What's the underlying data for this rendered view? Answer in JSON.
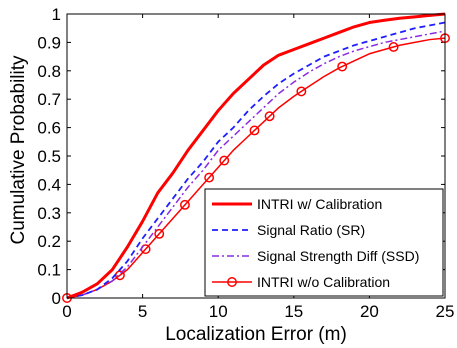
{
  "chart_data": {
    "type": "line",
    "title": "",
    "xlabel": "Localization Error (m)",
    "ylabel": "Cumulative Probability",
    "xlim": [
      0,
      25
    ],
    "ylim": [
      0,
      1
    ],
    "xticks": [
      "0",
      "5",
      "10",
      "15",
      "20",
      "25"
    ],
    "yticks": [
      "0",
      "0.1",
      "0.2",
      "0.3",
      "0.4",
      "0.5",
      "0.6",
      "0.7",
      "0.8",
      "0.9",
      "1"
    ],
    "grid": false,
    "legend_position": "bottom-right",
    "series": [
      {
        "name": "INTRI w/ Calibration",
        "color": "#ff0000",
        "style": "solid-thick",
        "x": [
          0,
          1,
          2,
          3,
          4,
          5,
          6,
          7,
          8,
          9,
          10,
          11,
          12,
          13,
          14,
          15,
          16,
          17,
          18,
          19,
          20,
          21,
          22,
          23,
          24,
          25
        ],
        "y": [
          0,
          0.02,
          0.05,
          0.1,
          0.18,
          0.27,
          0.37,
          0.44,
          0.52,
          0.59,
          0.66,
          0.72,
          0.77,
          0.82,
          0.855,
          0.875,
          0.895,
          0.915,
          0.935,
          0.955,
          0.97,
          0.978,
          0.985,
          0.99,
          0.995,
          1.0
        ]
      },
      {
        "name": "Signal Ratio (SR)",
        "color": "#1f1fff",
        "style": "dashed",
        "x": [
          0,
          1,
          2,
          3,
          4,
          5,
          6,
          7,
          8,
          9,
          10,
          11,
          12,
          13,
          14,
          15,
          16,
          17,
          18,
          19,
          20,
          21,
          22,
          23,
          24,
          25
        ],
        "y": [
          0,
          0.01,
          0.03,
          0.07,
          0.13,
          0.21,
          0.28,
          0.35,
          0.42,
          0.48,
          0.55,
          0.6,
          0.66,
          0.71,
          0.755,
          0.79,
          0.82,
          0.85,
          0.87,
          0.89,
          0.905,
          0.92,
          0.935,
          0.95,
          0.96,
          0.97
        ]
      },
      {
        "name": "Signal Strength Diff (SSD)",
        "color": "#8a2be2",
        "style": "dash-dot",
        "x": [
          0,
          1,
          2,
          3,
          4,
          5,
          6,
          7,
          8,
          9,
          10,
          11,
          12,
          13,
          14,
          15,
          16,
          17,
          18,
          19,
          20,
          21,
          22,
          23,
          24,
          25
        ],
        "y": [
          0,
          0.01,
          0.03,
          0.06,
          0.11,
          0.18,
          0.25,
          0.32,
          0.39,
          0.45,
          0.52,
          0.57,
          0.62,
          0.67,
          0.72,
          0.76,
          0.795,
          0.825,
          0.85,
          0.87,
          0.885,
          0.9,
          0.91,
          0.92,
          0.93,
          0.94
        ]
      },
      {
        "name": "INTRI w/o Calibration",
        "color": "#ff0000",
        "style": "solid-circle",
        "x": [
          0,
          1,
          2,
          3,
          4,
          5,
          6,
          7,
          8,
          9,
          10,
          11,
          12,
          13,
          14,
          15,
          16,
          17,
          18,
          19,
          20,
          21,
          22,
          23,
          24,
          25
        ],
        "y": [
          0,
          0.01,
          0.03,
          0.06,
          0.1,
          0.16,
          0.22,
          0.28,
          0.34,
          0.4,
          0.46,
          0.52,
          0.57,
          0.62,
          0.67,
          0.71,
          0.745,
          0.78,
          0.81,
          0.835,
          0.86,
          0.875,
          0.89,
          0.9,
          0.91,
          0.915
        ]
      }
    ],
    "marker_x": [
      0,
      3.5,
      5.2,
      6.1,
      7.8,
      9.4,
      10.4,
      12.4,
      13.4,
      15.5,
      18.2,
      21.6,
      25
    ]
  }
}
